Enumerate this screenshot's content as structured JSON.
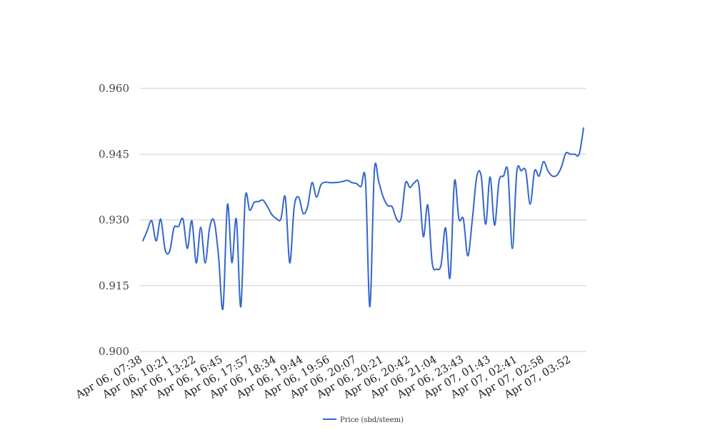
{
  "chart_data": {
    "type": "line",
    "title": "",
    "xlabel": "",
    "ylabel": "",
    "ylim": [
      0.9,
      0.96
    ],
    "yticks": [
      "0.900",
      "0.915",
      "0.930",
      "0.945",
      "0.960"
    ],
    "xtick_labels": [
      "Apr 06, 07:38",
      "Apr 06, 10:21",
      "Apr 06, 13:22",
      "Apr 06, 16:45",
      "Apr 06, 17:57",
      "Apr 06, 18:34",
      "Apr 06, 19:44",
      "Apr 06, 19:56",
      "Apr 06, 20:07",
      "Apr 06, 20:21",
      "Apr 06, 20:42",
      "Apr 06, 21:04",
      "Apr 06, 23:43",
      "Apr 07, 01:43",
      "Apr 07, 02:41",
      "Apr 07, 02:58",
      "Apr 07, 03:52"
    ],
    "grid": true,
    "legend_position": "bottom",
    "series": [
      {
        "name": "Price (sbd/steem)",
        "color": "#3366cc",
        "values": [
          0.9252,
          0.9276,
          0.9298,
          0.9252,
          0.9302,
          0.9232,
          0.9228,
          0.9282,
          0.9285,
          0.9302,
          0.9235,
          0.9298,
          0.9202,
          0.9283,
          0.9202,
          0.9282,
          0.9298,
          0.9218,
          0.9098,
          0.9335,
          0.9203,
          0.9302,
          0.9102,
          0.935,
          0.9322,
          0.934,
          0.9342,
          0.9345,
          0.933,
          0.9312,
          0.9303,
          0.9302,
          0.9352,
          0.9202,
          0.933,
          0.9352,
          0.9315,
          0.933,
          0.9385,
          0.9352,
          0.938,
          0.9386,
          0.9385,
          0.9385,
          0.9386,
          0.9388,
          0.939,
          0.9385,
          0.9383,
          0.9376,
          0.9391,
          0.9102,
          0.9412,
          0.9386,
          0.9352,
          0.9333,
          0.933,
          0.9302,
          0.9303,
          0.9384,
          0.9374,
          0.9385,
          0.938,
          0.9262,
          0.9334,
          0.9202,
          0.9188,
          0.9198,
          0.9282,
          0.9168,
          0.9388,
          0.9302,
          0.9302,
          0.9218,
          0.93,
          0.9398,
          0.94,
          0.929,
          0.9398,
          0.9288,
          0.9388,
          0.94,
          0.941,
          0.9235,
          0.941,
          0.9412,
          0.9412,
          0.9336,
          0.9412,
          0.94,
          0.9433,
          0.9412,
          0.94,
          0.9402,
          0.942,
          0.9452,
          0.945,
          0.945,
          0.945,
          0.951
        ]
      }
    ]
  }
}
